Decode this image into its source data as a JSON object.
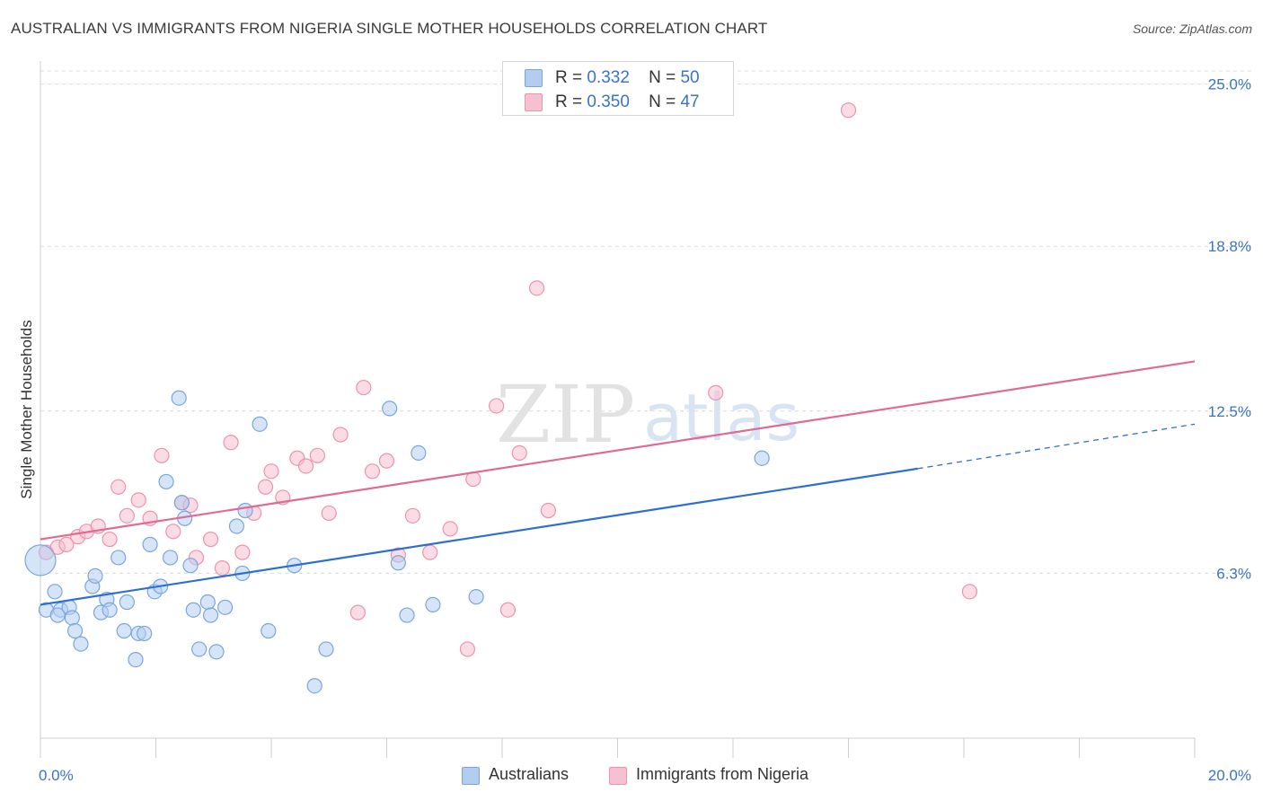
{
  "title": "AUSTRALIAN VS IMMIGRANTS FROM NIGERIA SINGLE MOTHER HOUSEHOLDS CORRELATION CHART",
  "source": "Source: ZipAtlas.com",
  "watermark": {
    "zip": "ZIP",
    "atlas": "atlas"
  },
  "legend": {
    "rows": [
      {
        "r_label": "R =",
        "r_value": "0.332",
        "n_label": "N =",
        "n_value": "50"
      },
      {
        "r_label": "R =",
        "r_value": "0.350",
        "n_label": "N =",
        "n_value": "47"
      }
    ]
  },
  "bottom_legend": {
    "series1": "Australians",
    "series2": "Immigrants from Nigeria"
  },
  "colors": {
    "blue_fill": "#b3cdf0",
    "blue_stroke": "#7aa6dc",
    "blue_line": "#2d6fd0",
    "pink_fill": "#f7c0d0",
    "pink_stroke": "#eb93ad",
    "pink_line": "#e06a92",
    "tick_label": "#3b73c8"
  },
  "chart_data": {
    "type": "scatter",
    "title": "AUSTRALIAN VS IMMIGRANTS FROM NIGERIA SINGLE MOTHER HOUSEHOLDS CORRELATION CHART",
    "xlabel": "",
    "ylabel": "Single Mother Households",
    "xlim": [
      0,
      20
    ],
    "ylim": [
      0,
      25.5
    ],
    "x_tick_labels": [
      "0.0%",
      "20.0%"
    ],
    "y_ticks": [
      6.3,
      12.5,
      18.8,
      25.0
    ],
    "y_tick_labels": [
      "6.3%",
      "12.5%",
      "18.8%",
      "25.0%"
    ],
    "grid": "horizontal dashed",
    "legend_position": "top-center",
    "series": [
      {
        "name": "Australians",
        "color": "#b3cdf0",
        "r": 0.332,
        "n": 50,
        "trend": {
          "x0": 0,
          "y0": 5.1,
          "x1": 15.2,
          "y1": 10.3,
          "dash_to_x": 20,
          "dash_to_y": 12.0
        },
        "points": [
          [
            0.0,
            6.8
          ],
          [
            0.1,
            4.9
          ],
          [
            0.25,
            5.6
          ],
          [
            0.35,
            4.9
          ],
          [
            0.3,
            4.7
          ],
          [
            0.5,
            5.0
          ],
          [
            0.55,
            4.6
          ],
          [
            0.6,
            4.1
          ],
          [
            0.7,
            3.6
          ],
          [
            0.9,
            5.8
          ],
          [
            0.95,
            6.2
          ],
          [
            1.05,
            4.8
          ],
          [
            1.15,
            5.3
          ],
          [
            1.2,
            4.9
          ],
          [
            1.35,
            6.9
          ],
          [
            1.45,
            4.1
          ],
          [
            1.5,
            5.2
          ],
          [
            1.65,
            3.0
          ],
          [
            1.7,
            4.0
          ],
          [
            1.8,
            4.0
          ],
          [
            1.9,
            7.4
          ],
          [
            1.98,
            5.6
          ],
          [
            2.08,
            5.8
          ],
          [
            2.18,
            9.8
          ],
          [
            2.25,
            6.9
          ],
          [
            2.4,
            13.0
          ],
          [
            2.45,
            9.0
          ],
          [
            2.5,
            8.4
          ],
          [
            2.6,
            6.6
          ],
          [
            2.65,
            4.9
          ],
          [
            2.75,
            3.4
          ],
          [
            2.9,
            5.2
          ],
          [
            2.95,
            4.7
          ],
          [
            3.05,
            3.3
          ],
          [
            3.2,
            5.0
          ],
          [
            3.4,
            8.1
          ],
          [
            3.5,
            6.3
          ],
          [
            3.55,
            8.7
          ],
          [
            3.8,
            12.0
          ],
          [
            3.95,
            4.1
          ],
          [
            4.4,
            6.6
          ],
          [
            4.75,
            2.0
          ],
          [
            4.95,
            3.4
          ],
          [
            6.05,
            12.6
          ],
          [
            6.2,
            6.7
          ],
          [
            6.35,
            4.7
          ],
          [
            6.55,
            10.9
          ],
          [
            6.8,
            5.1
          ],
          [
            7.55,
            5.4
          ],
          [
            12.5,
            10.7
          ]
        ]
      },
      {
        "name": "Immigrants from Nigeria",
        "color": "#f7c0d0",
        "r": 0.35,
        "n": 47,
        "trend": {
          "x0": 0,
          "y0": 7.6,
          "x1": 20,
          "y1": 14.4
        },
        "points": [
          [
            0.1,
            7.1
          ],
          [
            0.3,
            7.3
          ],
          [
            0.45,
            7.4
          ],
          [
            0.65,
            7.7
          ],
          [
            0.8,
            7.9
          ],
          [
            1.0,
            8.1
          ],
          [
            1.2,
            7.6
          ],
          [
            1.35,
            9.6
          ],
          [
            1.5,
            8.5
          ],
          [
            1.7,
            9.1
          ],
          [
            1.9,
            8.4
          ],
          [
            2.1,
            10.8
          ],
          [
            2.3,
            7.9
          ],
          [
            2.45,
            9.0
          ],
          [
            2.6,
            8.9
          ],
          [
            2.7,
            6.9
          ],
          [
            2.95,
            7.6
          ],
          [
            3.15,
            6.5
          ],
          [
            3.3,
            11.3
          ],
          [
            3.5,
            7.1
          ],
          [
            3.7,
            8.6
          ],
          [
            3.9,
            9.6
          ],
          [
            4.0,
            10.2
          ],
          [
            4.2,
            9.2
          ],
          [
            4.45,
            10.7
          ],
          [
            4.6,
            10.4
          ],
          [
            4.8,
            10.8
          ],
          [
            5.0,
            8.6
          ],
          [
            5.2,
            11.6
          ],
          [
            5.5,
            4.8
          ],
          [
            5.6,
            13.4
          ],
          [
            5.75,
            10.2
          ],
          [
            6.0,
            10.6
          ],
          [
            6.2,
            7.0
          ],
          [
            6.45,
            8.5
          ],
          [
            6.75,
            7.1
          ],
          [
            7.1,
            8.0
          ],
          [
            7.4,
            3.4
          ],
          [
            7.5,
            9.9
          ],
          [
            7.9,
            12.7
          ],
          [
            8.1,
            4.9
          ],
          [
            8.3,
            10.9
          ],
          [
            8.6,
            17.2
          ],
          [
            8.8,
            8.7
          ],
          [
            11.7,
            13.2
          ],
          [
            14.0,
            24.0
          ],
          [
            16.1,
            5.6
          ]
        ]
      }
    ]
  }
}
